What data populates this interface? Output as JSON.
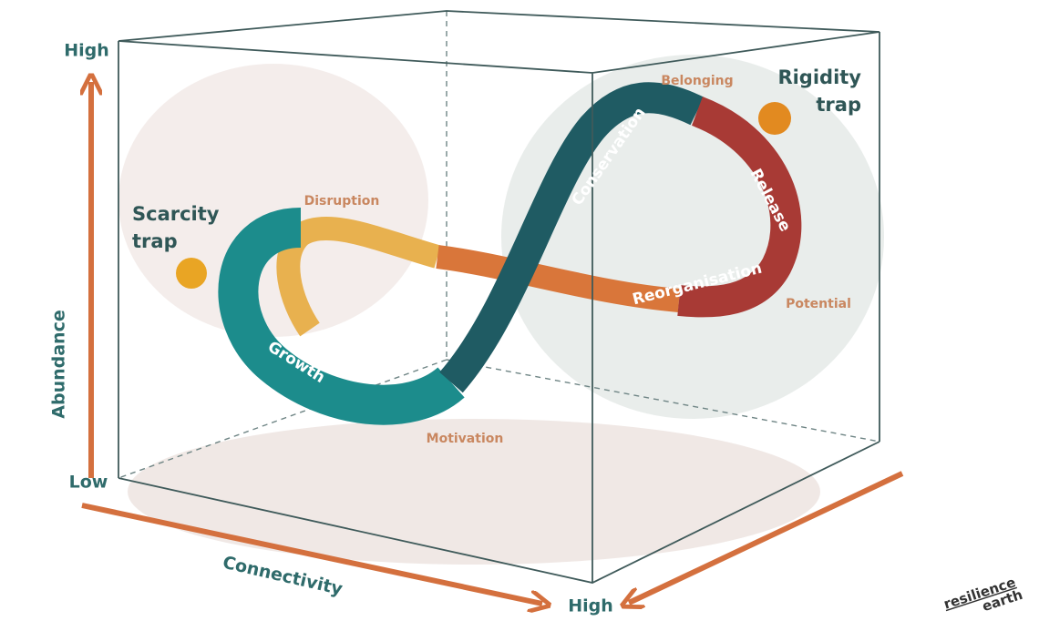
{
  "axes": {
    "abundance": {
      "label": "Abundance",
      "high": "High",
      "low": "Low"
    },
    "connectivity": {
      "label": "Connectivity",
      "high": "High"
    }
  },
  "traps": [
    {
      "lines": [
        "Scarcity",
        "trap"
      ]
    },
    {
      "lines": [
        "Rigidity",
        "trap"
      ]
    }
  ],
  "drivers": [
    "Disruption",
    "Belonging",
    "Potential",
    "Motivation"
  ],
  "phases": [
    "Growth",
    "Conservation",
    "Release",
    "Reorganisation"
  ],
  "logo": {
    "lines": [
      "resilience",
      "earth"
    ]
  }
}
